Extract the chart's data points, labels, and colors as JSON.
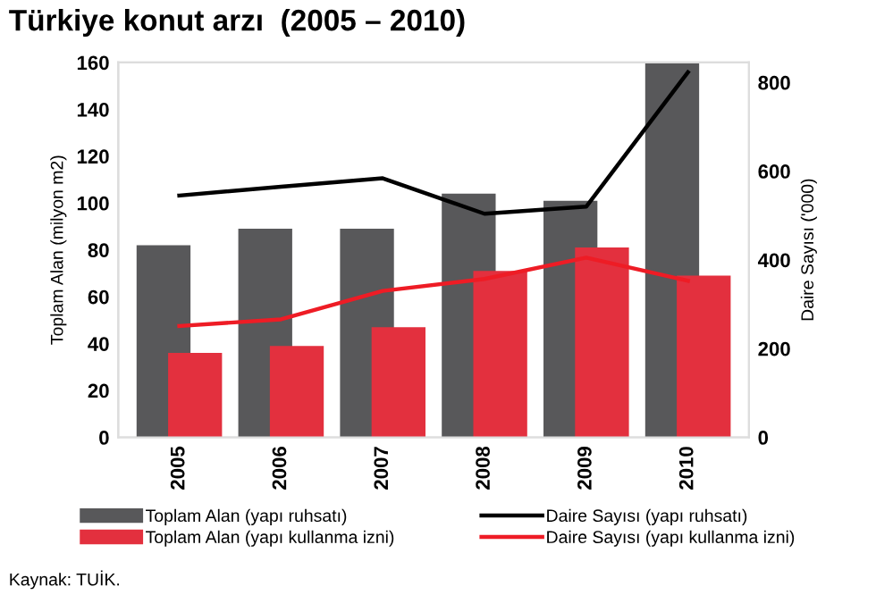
{
  "chart_data": {
    "type": "bar",
    "title": "Türkiye konut arzı  (2005 – 2010)",
    "categories": [
      "2005",
      "2006",
      "2007",
      "2008",
      "2009",
      "2010"
    ],
    "series": [
      {
        "name": "Toplam Alan (yapı ruhsatı)",
        "color": "#58585a",
        "values": [
          82,
          89,
          89,
          104,
          101,
          160
        ]
      },
      {
        "name": "Toplam Alan (yapı kullanma izni)",
        "color": "#e3303e",
        "values": [
          36,
          39,
          47,
          71,
          81,
          69
        ]
      },
      {
        "name": "Daire Sayısı (yapı ruhsatı)",
        "type": "line",
        "axis": "y2",
        "color": "#000000",
        "values": [
          545,
          565,
          584,
          504,
          520,
          823
        ]
      },
      {
        "name": "Daire Sayısı (yapı kullanma izni)",
        "type": "line",
        "axis": "y2",
        "color": "#ee1c25",
        "values": [
          251,
          266,
          330,
          357,
          405,
          353
        ]
      }
    ],
    "ylabel": "Toplam Alan (milyon m2)",
    "y2label": "Daire Sayısı ('000)",
    "ylim": [
      0,
      160
    ],
    "yticks": [
      0,
      20,
      40,
      60,
      80,
      100,
      120,
      140,
      160
    ],
    "y2lim": [
      0,
      845
    ],
    "y2ticks": [
      0,
      200,
      400,
      600,
      800
    ],
    "grid": false,
    "legend": "bottom",
    "annotations": [
      "Kaynak: TUİK."
    ]
  }
}
